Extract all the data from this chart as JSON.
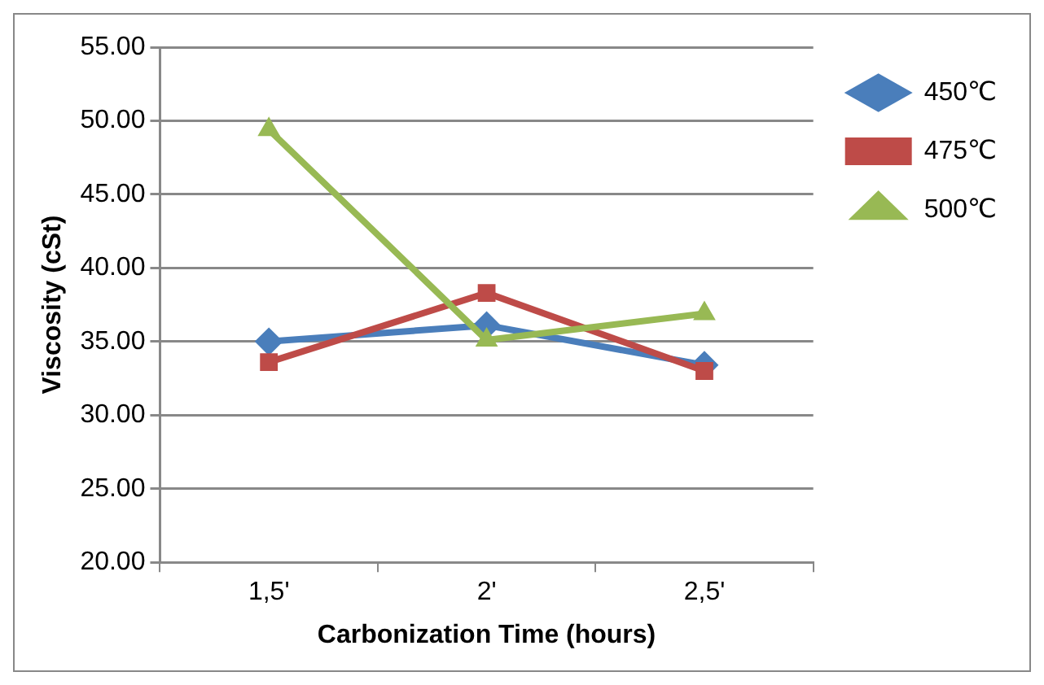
{
  "chart_data": {
    "type": "line",
    "xlabel": "Carbonization Time (hours)",
    "ylabel": "Viscosity (cSt)",
    "categories": [
      "1,5'",
      "2'",
      "2,5'"
    ],
    "series": [
      {
        "name": "450℃",
        "color": "#4a7ebb",
        "marker": "diamond",
        "values": [
          35.0,
          36.1,
          33.4
        ]
      },
      {
        "name": "475℃",
        "color": "#be4b48",
        "marker": "square",
        "values": [
          33.6,
          38.3,
          33.0
        ]
      },
      {
        "name": "500℃",
        "color": "#98b954",
        "marker": "triangle",
        "values": [
          49.4,
          35.1,
          36.9
        ]
      }
    ],
    "ylim": [
      20,
      55
    ],
    "yticks": [
      {
        "value": 20,
        "label": "20.00"
      },
      {
        "value": 25,
        "label": "25.00"
      },
      {
        "value": 30,
        "label": "30.00"
      },
      {
        "value": 35,
        "label": "35.00"
      },
      {
        "value": 40,
        "label": "40.00"
      },
      {
        "value": 45,
        "label": "45.00"
      },
      {
        "value": 50,
        "label": "50.00"
      },
      {
        "value": 55,
        "label": "55.00"
      }
    ],
    "grid": "y",
    "legend": "right",
    "line_style": "solid"
  }
}
